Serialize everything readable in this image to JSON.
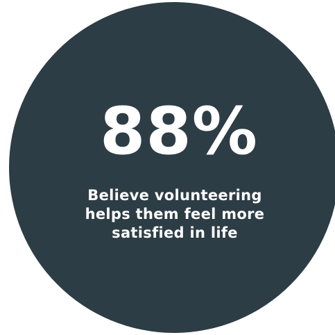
{
  "colors": {
    "circle_fill": "#2d3d45",
    "text": "#ffffff",
    "background": "#ffffff"
  },
  "stat": {
    "value": "88%"
  },
  "caption": {
    "lines": [
      "Believe volunteering",
      "helps them feel more",
      "satisfied in life"
    ]
  }
}
